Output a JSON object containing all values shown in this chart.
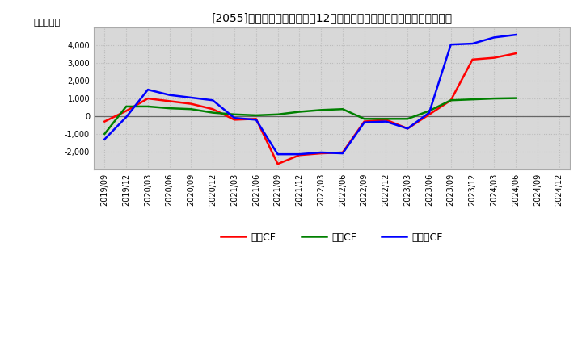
{
  "title": "[2055]　キャッシュフローの12か月移動合計の対前年同期増減額の推移",
  "ylabel": "（百万円）",
  "xlabels": [
    "2019/09",
    "2019/12",
    "2020/03",
    "2020/06",
    "2020/09",
    "2020/12",
    "2021/03",
    "2021/06",
    "2021/09",
    "2021/12",
    "2022/03",
    "2022/06",
    "2022/09",
    "2022/12",
    "2023/03",
    "2023/06",
    "2023/09",
    "2023/12",
    "2024/03",
    "2024/06",
    "2024/09",
    "2024/12"
  ],
  "eigyo_cf": [
    -300,
    300,
    1000,
    850,
    700,
    400,
    -200,
    -150,
    -2700,
    -2200,
    -2100,
    -2050,
    -300,
    -200,
    -700,
    100,
    900,
    3200,
    3300,
    3550,
    null,
    null
  ],
  "toshi_cf": [
    -1000,
    550,
    550,
    450,
    400,
    200,
    100,
    50,
    100,
    250,
    350,
    400,
    -150,
    -150,
    -150,
    300,
    900,
    950,
    1000,
    1020,
    null,
    null
  ],
  "free_cf": [
    -1300,
    -50,
    1500,
    1200,
    1050,
    900,
    -100,
    -200,
    -2150,
    -2150,
    -2050,
    -2100,
    -350,
    -300,
    -700,
    200,
    4050,
    4100,
    4450,
    4600,
    null,
    null
  ],
  "eigyo_color": "#ff0000",
  "toshi_color": "#008000",
  "free_color": "#0000ff",
  "ylim": [
    -3000,
    5000
  ],
  "yticks": [
    -2000,
    -1000,
    0,
    1000,
    2000,
    3000,
    4000
  ],
  "plot_bg_color": "#d8d8d8",
  "fig_bg_color": "#ffffff",
  "grid_color": "#bbbbbb",
  "legend_labels": [
    "営業CF",
    "投資CF",
    "フリーCF"
  ]
}
